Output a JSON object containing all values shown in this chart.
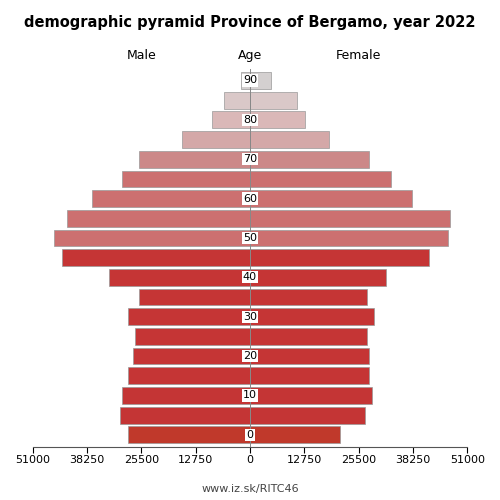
{
  "title": "demographic pyramid Province of Bergamo, year 2022",
  "subtitle": "www.iz.sk/RITC46",
  "male_label": "Male",
  "female_label": "Female",
  "age_label": "Age",
  "age_groups": [
    0,
    5,
    10,
    15,
    20,
    25,
    30,
    35,
    40,
    45,
    50,
    55,
    60,
    65,
    70,
    75,
    80,
    85,
    90
  ],
  "male_values": [
    28500,
    30500,
    30000,
    28500,
    27500,
    27000,
    28500,
    26000,
    33000,
    44000,
    46000,
    43000,
    37000,
    30000,
    26000,
    16000,
    9000,
    6000,
    2000
  ],
  "female_values": [
    21000,
    27000,
    28500,
    28000,
    28000,
    27500,
    29000,
    27500,
    32000,
    42000,
    46500,
    47000,
    38000,
    33000,
    28000,
    18500,
    13000,
    11000,
    5000
  ],
  "xlim": 51000,
  "male_colors": [
    "#c0392b",
    "#c43535",
    "#c43535",
    "#c53535",
    "#c53535",
    "#c53535",
    "#c53535",
    "#c53535",
    "#c53535",
    "#c53535",
    "#cc7070",
    "#cc7070",
    "#cc7070",
    "#cc7070",
    "#cc8888",
    "#d4a8a8",
    "#dab8b8",
    "#dac8c8",
    "#d4d0d0"
  ],
  "female_colors": [
    "#c0392b",
    "#c43535",
    "#c43535",
    "#c53535",
    "#c53535",
    "#c53535",
    "#c53535",
    "#c53535",
    "#c53535",
    "#c53535",
    "#cc7070",
    "#cc7070",
    "#cc7070",
    "#cc7070",
    "#cc8888",
    "#d4a8a8",
    "#dab8b8",
    "#dac8c8",
    "#d4d0d0"
  ],
  "edgecolor": "#999999",
  "linewidth": 0.5,
  "bar_height": 0.85,
  "background_color": "#ffffff",
  "xticks": [
    -51000,
    -38250,
    -25500,
    -12750,
    0,
    12750,
    25500,
    38250,
    51000
  ],
  "xtick_labels": [
    "51000",
    "38250",
    "25500",
    "12750",
    "0",
    "12750",
    "25500",
    "38250",
    "51000"
  ],
  "ytick_ages": [
    0,
    10,
    20,
    30,
    40,
    50,
    60,
    70,
    80,
    90
  ]
}
